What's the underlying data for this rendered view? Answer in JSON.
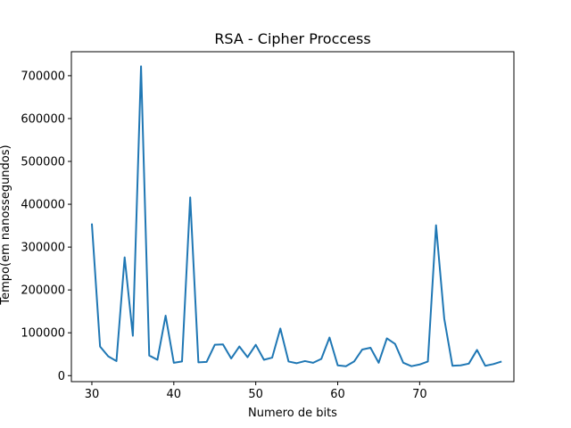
{
  "chart_data": {
    "type": "line",
    "title": "RSA - Cipher Proccess",
    "xlabel": "Numero de bits",
    "ylabel": "Tempo(em nanossegundos)",
    "xlim": [
      27.5,
      81.5
    ],
    "ylim": [
      -14000,
      756000
    ],
    "xticks": [
      30,
      40,
      50,
      60,
      70
    ],
    "yticks": [
      0,
      100000,
      200000,
      300000,
      400000,
      500000,
      600000,
      700000
    ],
    "grid": false,
    "series": [
      {
        "color": "#1f77b4",
        "x": [
          30,
          31,
          32,
          33,
          34,
          35,
          36,
          37,
          38,
          39,
          40,
          41,
          42,
          43,
          44,
          45,
          46,
          47,
          48,
          49,
          50,
          51,
          52,
          53,
          54,
          55,
          56,
          57,
          58,
          59,
          60,
          61,
          62,
          63,
          64,
          65,
          66,
          67,
          68,
          69,
          70,
          71,
          72,
          73,
          74,
          75,
          76,
          77,
          78,
          79,
          80
        ],
        "y": [
          355000,
          68000,
          45000,
          34000,
          276000,
          93000,
          722000,
          47000,
          37000,
          140000,
          30000,
          33000,
          416000,
          31000,
          32000,
          72000,
          73000,
          40000,
          68000,
          43000,
          72000,
          37000,
          42000,
          110000,
          33000,
          29000,
          34000,
          30000,
          39000,
          89000,
          24000,
          22000,
          33000,
          61000,
          65000,
          30000,
          87000,
          74000,
          30000,
          22000,
          26000,
          33000,
          351000,
          133000,
          23000,
          24000,
          28000,
          60000,
          23000,
          27000,
          33000
        ]
      }
    ]
  }
}
